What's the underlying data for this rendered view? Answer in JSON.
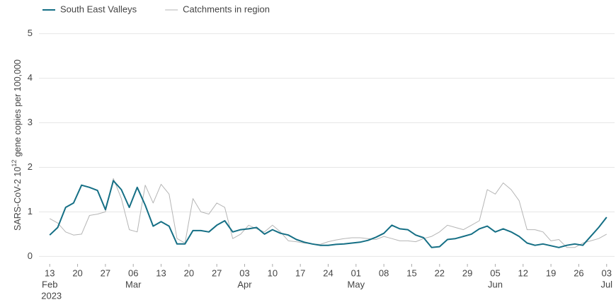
{
  "chart_data": {
    "type": "line",
    "ylabel": {
      "prefix": "SARS-CoV-2  10",
      "sup": "12",
      "suffix": "gene  copies  per  100,000"
    },
    "x": [
      "2023-02-13",
      "2023-02-15",
      "2023-02-17",
      "2023-02-19",
      "2023-02-21",
      "2023-02-23",
      "2023-02-25",
      "2023-02-27",
      "2023-03-01",
      "2023-03-03",
      "2023-03-05",
      "2023-03-07",
      "2023-03-09",
      "2023-03-11",
      "2023-03-13",
      "2023-03-15",
      "2023-03-17",
      "2023-03-19",
      "2023-03-21",
      "2023-03-23",
      "2023-03-25",
      "2023-03-27",
      "2023-03-29",
      "2023-03-31",
      "2023-04-02",
      "2023-04-04",
      "2023-04-06",
      "2023-04-08",
      "2023-04-10",
      "2023-04-12",
      "2023-04-14",
      "2023-04-16",
      "2023-04-18",
      "2023-04-20",
      "2023-04-22",
      "2023-04-24",
      "2023-04-26",
      "2023-04-28",
      "2023-04-30",
      "2023-05-02",
      "2023-05-04",
      "2023-05-06",
      "2023-05-08",
      "2023-05-10",
      "2023-05-12",
      "2023-05-14",
      "2023-05-16",
      "2023-05-18",
      "2023-05-20",
      "2023-05-22",
      "2023-05-24",
      "2023-05-26",
      "2023-05-28",
      "2023-05-30",
      "2023-06-01",
      "2023-06-03",
      "2023-06-05",
      "2023-06-07",
      "2023-06-09",
      "2023-06-11",
      "2023-06-13",
      "2023-06-15",
      "2023-06-17",
      "2023-06-19",
      "2023-06-21",
      "2023-06-23",
      "2023-06-25",
      "2023-06-27",
      "2023-06-29",
      "2023-07-01",
      "2023-07-03"
    ],
    "series": [
      {
        "name": "South East Valleys",
        "color": "#156f85",
        "width": 2,
        "values": [
          0.48,
          0.65,
          1.1,
          1.2,
          1.6,
          1.55,
          1.48,
          1.05,
          1.7,
          1.5,
          1.1,
          1.55,
          1.15,
          0.68,
          0.78,
          0.68,
          0.28,
          0.28,
          0.58,
          0.58,
          0.55,
          0.7,
          0.8,
          0.55,
          0.6,
          0.62,
          0.65,
          0.5,
          0.6,
          0.52,
          0.48,
          0.38,
          0.32,
          0.28,
          0.25,
          0.25,
          0.27,
          0.28,
          0.3,
          0.32,
          0.36,
          0.43,
          0.52,
          0.7,
          0.62,
          0.6,
          0.48,
          0.42,
          0.2,
          0.22,
          0.38,
          0.4,
          0.45,
          0.5,
          0.62,
          0.68,
          0.55,
          0.62,
          0.55,
          0.45,
          0.3,
          0.25,
          0.28,
          0.24,
          0.2,
          0.25,
          0.28,
          0.25,
          0.45,
          0.65,
          0.88
        ]
      },
      {
        "name": "Catchments in region",
        "color": "#b5b5b5",
        "width": 1,
        "values": [
          0.85,
          0.75,
          0.55,
          0.48,
          0.5,
          0.92,
          0.95,
          1.0,
          1.75,
          1.3,
          0.6,
          0.55,
          1.6,
          1.2,
          1.62,
          1.4,
          0.4,
          0.3,
          1.3,
          1.0,
          0.95,
          1.2,
          1.1,
          0.4,
          0.5,
          0.7,
          0.62,
          0.55,
          0.7,
          0.55,
          0.35,
          0.33,
          0.3,
          0.28,
          0.27,
          0.33,
          0.37,
          0.4,
          0.42,
          0.42,
          0.4,
          0.38,
          0.45,
          0.4,
          0.35,
          0.35,
          0.33,
          0.4,
          0.45,
          0.55,
          0.7,
          0.65,
          0.6,
          0.7,
          0.8,
          1.5,
          1.4,
          1.65,
          1.5,
          1.25,
          0.6,
          0.6,
          0.55,
          0.35,
          0.38,
          0.2,
          0.2,
          0.3,
          0.35,
          0.4,
          0.5
        ]
      }
    ],
    "xlim": [
      "2023-02-11",
      "2023-07-05"
    ],
    "xticks": [
      {
        "value": "2023-02-13",
        "label": [
          "13",
          "Feb",
          "2023"
        ]
      },
      {
        "value": "2023-02-20",
        "label": [
          "20"
        ]
      },
      {
        "value": "2023-02-27",
        "label": [
          "27"
        ]
      },
      {
        "value": "2023-03-06",
        "label": [
          "06",
          "Mar"
        ]
      },
      {
        "value": "2023-03-13",
        "label": [
          "13"
        ]
      },
      {
        "value": "2023-03-20",
        "label": [
          "20"
        ]
      },
      {
        "value": "2023-03-27",
        "label": [
          "27"
        ]
      },
      {
        "value": "2023-04-03",
        "label": [
          "03",
          "Apr"
        ]
      },
      {
        "value": "2023-04-10",
        "label": [
          "10"
        ]
      },
      {
        "value": "2023-04-17",
        "label": [
          "17"
        ]
      },
      {
        "value": "2023-04-24",
        "label": [
          "24"
        ]
      },
      {
        "value": "2023-05-01",
        "label": [
          "01",
          "May"
        ]
      },
      {
        "value": "2023-05-08",
        "label": [
          "08"
        ]
      },
      {
        "value": "2023-05-15",
        "label": [
          "15"
        ]
      },
      {
        "value": "2023-05-22",
        "label": [
          "22"
        ]
      },
      {
        "value": "2023-05-29",
        "label": [
          "29"
        ]
      },
      {
        "value": "2023-06-05",
        "label": [
          "05",
          "Jun"
        ]
      },
      {
        "value": "2023-06-12",
        "label": [
          "12"
        ]
      },
      {
        "value": "2023-06-19",
        "label": [
          "19"
        ]
      },
      {
        "value": "2023-06-26",
        "label": [
          "26"
        ]
      },
      {
        "value": "2023-07-03",
        "label": [
          "03",
          "Jul"
        ]
      }
    ],
    "ylim": [
      -0.2,
      5.2
    ],
    "yticks": [
      0,
      1,
      2,
      3,
      4,
      5
    ],
    "grid": true,
    "legend": "top-left"
  }
}
